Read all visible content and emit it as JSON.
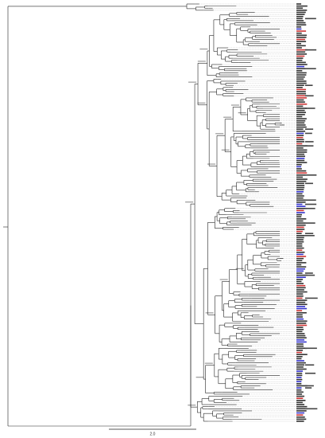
{
  "scale_bar": {
    "label": "2.0"
  }
}
